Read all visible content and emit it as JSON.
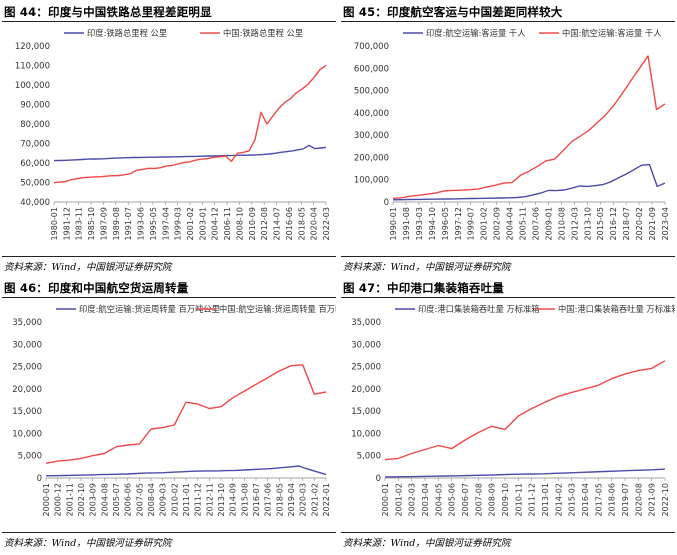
{
  "source_label": "资料来源：Wind，中国银河证券研究院",
  "chart_data": [
    {
      "type": "line",
      "title": "图 44：印度与中国铁路总里程差距明显",
      "ylim": [
        40000,
        120000
      ],
      "yticks": [
        "40,000",
        "50,000",
        "60,000",
        "70,000",
        "80,000",
        "90,000",
        "100,000",
        "110,000",
        "120,000"
      ],
      "x_ticks": [
        "1980-01",
        "1981-12",
        "1983-11",
        "1985-10",
        "1987-09",
        "1989-08",
        "1991-07",
        "1993-06",
        "1995-05",
        "1997-04",
        "1999-03",
        "2001-02",
        "2003-01",
        "2004-12",
        "2006-11",
        "2008-10",
        "2010-09",
        "2012-08",
        "2014-07",
        "2016-06",
        "2018-05",
        "2020-04",
        "2022-03"
      ],
      "legend_placement": "top",
      "series": [
        {
          "name": "印度:铁路总里程 公里",
          "color": "#4b4ba8",
          "values": [
            61240,
            61300,
            61400,
            61500,
            61650,
            61800,
            62000,
            62050,
            62100,
            62200,
            62400,
            62500,
            62600,
            62700,
            62800,
            62800,
            62900,
            63000,
            63000,
            63100,
            63100,
            63200,
            63200,
            63300,
            63400,
            63400,
            63500,
            63600,
            63600,
            63700,
            63800,
            63800,
            63900,
            64000,
            64000,
            64100,
            64200,
            64400,
            64600,
            65000,
            65500,
            65800,
            66200,
            66700,
            67300,
            69100,
            67400,
            67700,
            68000
          ]
        },
        {
          "name": "中国:铁路总里程 公里",
          "color": "#f04848",
          "values": [
            49900,
            50200,
            50500,
            51500,
            52000,
            52500,
            52700,
            52900,
            53000,
            53300,
            53500,
            53600,
            54000,
            54600,
            56300,
            56700,
            57300,
            57200,
            57600,
            58400,
            58800,
            59500,
            60300,
            60600,
            61500,
            62000,
            62200,
            63000,
            63200,
            63600,
            60800,
            65000,
            65500,
            66200,
            72000,
            86000,
            80000,
            84000,
            88000,
            91000,
            93000,
            96000,
            98000,
            100500,
            104000,
            108000,
            110000
          ]
        }
      ]
    },
    {
      "type": "line",
      "title": "图 45：印度航空客运与中国差距同样较大",
      "ylim": [
        0,
        700000
      ],
      "yticks": [
        "0",
        "100,000",
        "200,000",
        "300,000",
        "400,000",
        "500,000",
        "600,000",
        "700,000"
      ],
      "x_ticks": [
        "1990-01",
        "1991-08",
        "1993-03",
        "1994-10",
        "1996-05",
        "1997-12",
        "1999-07",
        "2001-02",
        "2002-09",
        "2004-04",
        "2005-11",
        "2007-06",
        "2009-01",
        "2010-08",
        "2012-03",
        "2013-10",
        "2015-05",
        "2016-12",
        "2018-07",
        "2020-02",
        "2021-09",
        "2023-04"
      ],
      "legend_placement": "top",
      "series": [
        {
          "name": "印度:航空运输:客运量 千人",
          "color": "#4b4ba8",
          "values": [
            10000,
            10500,
            11000,
            11500,
            12000,
            12500,
            13000,
            13500,
            14000,
            15000,
            15500,
            16000,
            16500,
            17000,
            18000,
            19000,
            20000,
            24000,
            32000,
            40000,
            52000,
            51000,
            54000,
            62000,
            72000,
            70000,
            73000,
            78000,
            90000,
            108000,
            125000,
            145000,
            165000,
            168000,
            70000,
            85000
          ]
        },
        {
          "name": "中国:航空运输:客运量 千人",
          "color": "#f04848",
          "values": [
            16000,
            19000,
            26000,
            30000,
            35000,
            40000,
            50000,
            52000,
            53000,
            55000,
            58000,
            67000,
            75000,
            85000,
            87000,
            120000,
            138000,
            160000,
            185000,
            192000,
            230000,
            270000,
            295000,
            320000,
            355000,
            390000,
            435000,
            488000,
            545000,
            600000,
            655000,
            415000,
            440000
          ]
        }
      ]
    },
    {
      "type": "line",
      "title": "图 46：印度和中国航空货运周转量",
      "ylim": [
        0,
        35000
      ],
      "yticks": [
        "0",
        "5,000",
        "10,000",
        "15,000",
        "20,000",
        "25,000",
        "30,000",
        "35,000"
      ],
      "x_ticks": [
        "2000-01",
        "2000-12",
        "2001-11",
        "2002-10",
        "2003-09",
        "2004-08",
        "2005-07",
        "2006-06",
        "2007-05",
        "2008-04",
        "2009-03",
        "2010-02",
        "2011-01",
        "2011-12",
        "2012-11",
        "2013-10",
        "2014-09",
        "2015-08",
        "2016-07",
        "2017-06",
        "2018-05",
        "2019-04",
        "2020-03",
        "2021-02",
        "2022-01"
      ],
      "legend_placement": "top",
      "series": [
        {
          "name": "印度:航空运输:货运周转量 百万吨公里",
          "color": "#4b4ba8",
          "values": [
            500,
            520,
            550,
            600,
            650,
            700,
            760,
            800,
            850,
            900,
            1000,
            1100,
            1150,
            1200,
            1300,
            1400,
            1500,
            1550,
            1600,
            1600,
            1650,
            1700,
            1800,
            1900,
            2000,
            2100,
            2300,
            2500,
            2700,
            2000,
            1400,
            800
          ]
        },
        {
          "name": "中国:航空运输:货运周转量 百万吨公里",
          "color": "#f04848",
          "values": [
            3300,
            3800,
            4000,
            4400,
            5000,
            5500,
            7000,
            7400,
            7600,
            11000,
            11300,
            11900,
            17000,
            16600,
            15600,
            16000,
            18000,
            19500,
            21000,
            22500,
            24000,
            25200,
            25400,
            18800,
            19300
          ]
        }
      ]
    },
    {
      "type": "line",
      "title": "图 47：中印港口集装箱吞吐量",
      "ylim": [
        0,
        35000
      ],
      "yticks": [
        "0",
        "5,000",
        "10,000",
        "15,000",
        "20,000",
        "25,000",
        "30,000",
        "35,000"
      ],
      "x_ticks": [
        "2000-01",
        "2001-02",
        "2002-03",
        "2003-04",
        "2004-05",
        "2005-06",
        "2006-07",
        "2007-08",
        "2008-09",
        "2009-10",
        "2010-11",
        "2011-12",
        "2013-01",
        "2014-02",
        "2015-03",
        "2016-04",
        "2017-05",
        "2018-06",
        "2019-07",
        "2020-08",
        "2021-09",
        "2022-10"
      ],
      "legend_placement": "top",
      "series": [
        {
          "name": "印度:港口集装箱吞吐量 万标准箱",
          "color": "#4b4ba8",
          "values": [
            250,
            270,
            300,
            350,
            400,
            450,
            500,
            560,
            620,
            700,
            780,
            850,
            900,
            950,
            1050,
            1150,
            1250,
            1350,
            1450,
            1550,
            1650,
            1750,
            1850,
            2000
          ]
        },
        {
          "name": "中国:港口集装箱吞吐量 万标准箱",
          "color": "#f04848",
          "values": [
            4100,
            4400,
            5500,
            6400,
            7300,
            6600,
            8500,
            10200,
            11600,
            10900,
            13900,
            15600,
            17000,
            18300,
            19200,
            20000,
            20800,
            22300,
            23300,
            24100,
            24600,
            26300
          ]
        }
      ]
    }
  ]
}
